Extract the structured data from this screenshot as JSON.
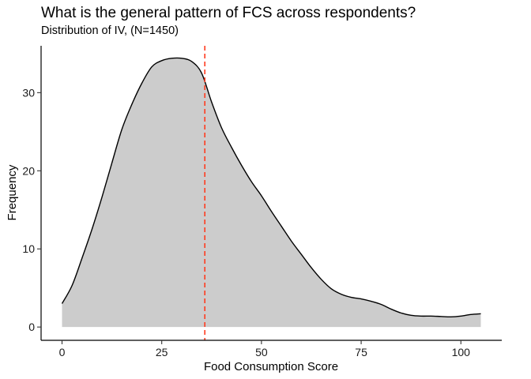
{
  "chart_data": {
    "type": "area",
    "title": "What is the general pattern of FCS across respondents?",
    "subtitle": "Distribution of IV, (N=1450)",
    "xlabel": "Food Consumption Score",
    "ylabel": "Frequency",
    "xlim": [
      -5.25,
      110.25
    ],
    "ylim": [
      -1.7,
      36.0
    ],
    "x_ticks": [
      0,
      25,
      50,
      75,
      100
    ],
    "y_ticks": [
      0,
      10,
      20,
      30
    ],
    "grid": false,
    "legend": "none",
    "fill_color": "#cccccc",
    "line_color": "#000000",
    "reference_line": {
      "x": 35.8,
      "color": "#ff3b1f",
      "style": "dashed"
    },
    "x": [
      0,
      2.5,
      5,
      7.5,
      10,
      12.5,
      15,
      17.5,
      20,
      22.5,
      25,
      27.5,
      30,
      32.5,
      35,
      37.5,
      40,
      42.5,
      45,
      47.5,
      50,
      52.5,
      55,
      57.5,
      60,
      62.5,
      65,
      67.5,
      70,
      72.5,
      75,
      77.5,
      80,
      82.5,
      85,
      87.5,
      90,
      92.5,
      95,
      97.5,
      100,
      102.5,
      105
    ],
    "y": [
      3.0,
      5.3,
      8.8,
      12.5,
      16.6,
      21.0,
      25.3,
      28.5,
      31.2,
      33.3,
      34.1,
      34.4,
      34.4,
      34.0,
      32.5,
      28.8,
      25.5,
      23.0,
      20.7,
      18.6,
      16.8,
      14.8,
      12.9,
      11.0,
      9.3,
      7.6,
      6.1,
      4.9,
      4.2,
      3.8,
      3.6,
      3.3,
      2.9,
      2.3,
      1.8,
      1.5,
      1.4,
      1.4,
      1.35,
      1.3,
      1.4,
      1.6,
      1.7
    ]
  }
}
